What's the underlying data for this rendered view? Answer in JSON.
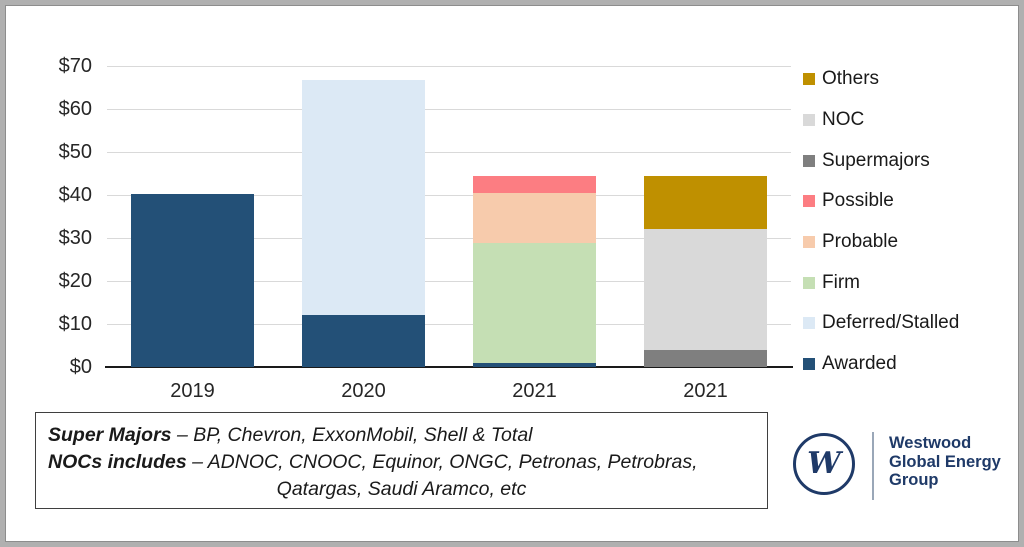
{
  "chart_data": {
    "type": "bar",
    "stacked": true,
    "title": "",
    "xlabel": "",
    "ylabel": "",
    "ylim": [
      0,
      70
    ],
    "grid": true,
    "legend_position": "right",
    "y_ticks": [
      {
        "value": 0,
        "label": "$0"
      },
      {
        "value": 10,
        "label": "$10"
      },
      {
        "value": 20,
        "label": "$20"
      },
      {
        "value": 30,
        "label": "$30"
      },
      {
        "value": 40,
        "label": "$40"
      },
      {
        "value": 50,
        "label": "$50"
      },
      {
        "value": 60,
        "label": "$60"
      },
      {
        "value": 70,
        "label": "$70"
      }
    ],
    "categories": [
      "2019",
      "2020",
      "2021",
      "2021"
    ],
    "bars": [
      {
        "category": "2019",
        "segments": [
          {
            "name": "Awarded",
            "value": 40.3
          }
        ]
      },
      {
        "category": "2020",
        "segments": [
          {
            "name": "Awarded",
            "value": 12.0
          },
          {
            "name": "Deferred/Stalled",
            "value": 54.7
          }
        ]
      },
      {
        "category": "2021",
        "segments": [
          {
            "name": "Awarded",
            "value": 1.0
          },
          {
            "name": "Firm",
            "value": 27.8
          },
          {
            "name": "Probable",
            "value": 11.7
          },
          {
            "name": "Possible",
            "value": 3.9
          }
        ]
      },
      {
        "category": "2021",
        "segments": [
          {
            "name": "Supermajors",
            "value": 4.0
          },
          {
            "name": "NOC",
            "value": 28.1
          },
          {
            "name": "Others",
            "value": 12.3
          }
        ]
      }
    ],
    "legend": [
      {
        "label": "Others",
        "color": "#BF9000"
      },
      {
        "label": "NOC",
        "color": "#D9D9D9"
      },
      {
        "label": "Supermajors",
        "color": "#7F7F7F"
      },
      {
        "label": "Possible",
        "color": "#FC7D82"
      },
      {
        "label": "Probable",
        "color": "#F7CBAC"
      },
      {
        "label": "Firm",
        "color": "#C5DFB4"
      },
      {
        "label": "Deferred/Stalled",
        "color": "#DCE9F5"
      },
      {
        "label": "Awarded",
        "color": "#235077"
      }
    ]
  },
  "note": {
    "line1_bold": "Super Majors",
    "line1_rest": " – BP, Chevron, ExxonMobil, Shell & Total",
    "line2_bold": "NOCs includes",
    "line2_rest": " – ADNOC, CNOOC, Equinor, ONGC, Petronas, Petrobras,",
    "line3": "Qatargas, Saudi Aramco, etc"
  },
  "logo": {
    "monogram": "W",
    "name_line1": "Westwood",
    "name_line2": "Global Energy",
    "name_line3": "Group"
  }
}
